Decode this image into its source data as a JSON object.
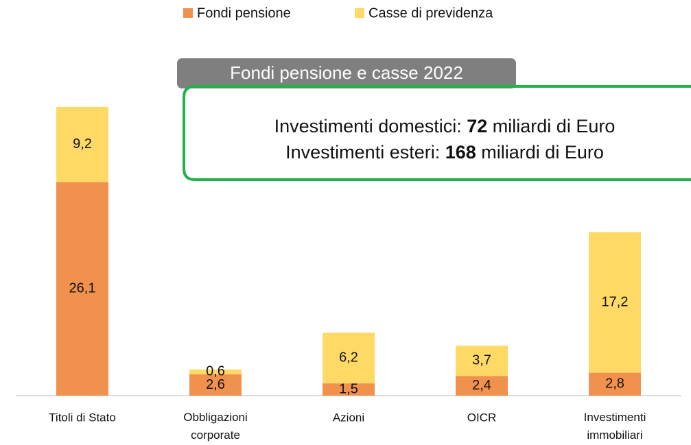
{
  "chart_data": {
    "type": "stacked_bar",
    "categories": [
      "Titoli di Stato",
      "Obbligazioni corporate",
      "Azioni",
      "OICR",
      "Investimenti immobiliari"
    ],
    "series": [
      {
        "name": "Fondi pensione",
        "color": "#f0914d",
        "values": [
          26.1,
          2.6,
          1.5,
          2.4,
          2.8
        ],
        "value_labels": [
          "26,1",
          "2,6",
          "1,5",
          "2,4",
          "2,8"
        ]
      },
      {
        "name": "Casse di previdenza",
        "color": "#ffd966",
        "values": [
          9.2,
          0.6,
          6.2,
          3.7,
          17.2
        ],
        "value_labels": [
          "9,2",
          "0,6",
          "6,2",
          "3,7",
          "17,2"
        ]
      }
    ],
    "legend": "top",
    "annotation": {
      "title": "Fondi pensione e casse 2022",
      "lines": [
        [
          "Investimenti domestici: ",
          "72",
          " miliardi di Euro"
        ],
        [
          "Investimenti esteri: ",
          "168",
          " miliardi di Euro"
        ]
      ]
    }
  }
}
